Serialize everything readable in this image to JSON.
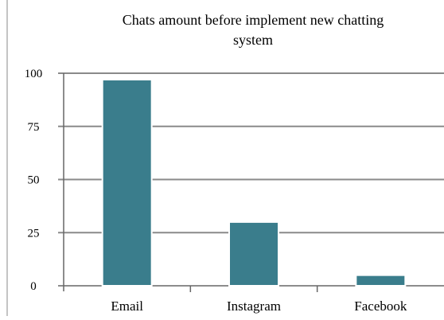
{
  "chart_data": {
    "type": "bar",
    "title_lines": [
      "Chats amount before implement new chatting",
      "system"
    ],
    "categories": [
      "Email",
      "Instagram",
      "Facebook"
    ],
    "values": [
      97,
      30,
      5
    ],
    "ylim": [
      0,
      100
    ],
    "yticks": [
      0,
      25,
      50,
      75,
      100
    ],
    "grid": true,
    "legend": "none",
    "bar_color": "#3a7d8c"
  }
}
